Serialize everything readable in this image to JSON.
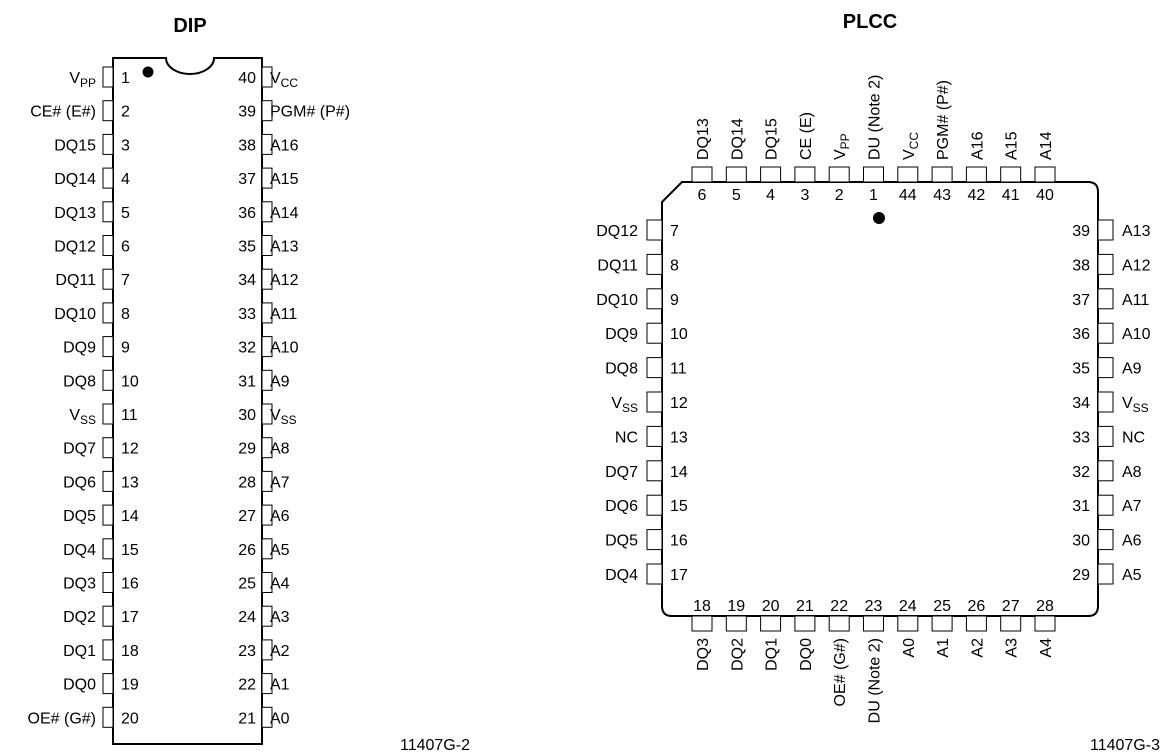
{
  "dip": {
    "title": "DIP",
    "figure_id": "11407G-2",
    "pins": [
      {
        "num": "1",
        "label": "VPP",
        "base": "V",
        "sub": "PP"
      },
      {
        "num": "2",
        "label": "CE# (E#)"
      },
      {
        "num": "3",
        "label": "DQ15"
      },
      {
        "num": "4",
        "label": "DQ14"
      },
      {
        "num": "5",
        "label": "DQ13"
      },
      {
        "num": "6",
        "label": "DQ12"
      },
      {
        "num": "7",
        "label": "DQ11"
      },
      {
        "num": "8",
        "label": "DQ10"
      },
      {
        "num": "9",
        "label": "DQ9"
      },
      {
        "num": "10",
        "label": "DQ8"
      },
      {
        "num": "11",
        "label": "VSS",
        "base": "V",
        "sub": "SS"
      },
      {
        "num": "12",
        "label": "DQ7"
      },
      {
        "num": "13",
        "label": "DQ6"
      },
      {
        "num": "14",
        "label": "DQ5"
      },
      {
        "num": "15",
        "label": "DQ4"
      },
      {
        "num": "16",
        "label": "DQ3"
      },
      {
        "num": "17",
        "label": "DQ2"
      },
      {
        "num": "18",
        "label": "DQ1"
      },
      {
        "num": "19",
        "label": "DQ0"
      },
      {
        "num": "20",
        "label": "OE# (G#)"
      },
      {
        "num": "21",
        "label": "A0"
      },
      {
        "num": "22",
        "label": "A1"
      },
      {
        "num": "23",
        "label": "A2"
      },
      {
        "num": "24",
        "label": "A3"
      },
      {
        "num": "25",
        "label": "A4"
      },
      {
        "num": "26",
        "label": "A5"
      },
      {
        "num": "27",
        "label": "A6"
      },
      {
        "num": "28",
        "label": "A7"
      },
      {
        "num": "29",
        "label": "A8"
      },
      {
        "num": "30",
        "label": "VSS",
        "base": "V",
        "sub": "SS"
      },
      {
        "num": "31",
        "label": "A9"
      },
      {
        "num": "32",
        "label": "A10"
      },
      {
        "num": "33",
        "label": "A11"
      },
      {
        "num": "34",
        "label": "A12"
      },
      {
        "num": "35",
        "label": "A13"
      },
      {
        "num": "36",
        "label": "A14"
      },
      {
        "num": "37",
        "label": "A15"
      },
      {
        "num": "38",
        "label": "A16"
      },
      {
        "num": "39",
        "label": "PGM# (P#)"
      },
      {
        "num": "40",
        "label": "VCC",
        "base": "V",
        "sub": "CC"
      }
    ]
  },
  "plcc": {
    "title": "PLCC",
    "figure_id": "11407G-3",
    "top_pins": [
      {
        "num": "6",
        "label": "DQ13"
      },
      {
        "num": "5",
        "label": "DQ14"
      },
      {
        "num": "4",
        "label": "DQ15"
      },
      {
        "num": "3",
        "label": "CE (E)"
      },
      {
        "num": "2",
        "label": "VPP",
        "base": "V",
        "sub": "PP"
      },
      {
        "num": "1",
        "label": "DU (Note 2)"
      },
      {
        "num": "44",
        "label": "VCC",
        "base": "V",
        "sub": "CC"
      },
      {
        "num": "43",
        "label": "PGM# (P#)"
      },
      {
        "num": "42",
        "label": "A16"
      },
      {
        "num": "41",
        "label": "A15"
      },
      {
        "num": "40",
        "label": "A14"
      }
    ],
    "left_pins": [
      {
        "num": "7",
        "label": "DQ12"
      },
      {
        "num": "8",
        "label": "DQ11"
      },
      {
        "num": "9",
        "label": "DQ10"
      },
      {
        "num": "10",
        "label": "DQ9"
      },
      {
        "num": "11",
        "label": "DQ8"
      },
      {
        "num": "12",
        "label": "VSS",
        "base": "V",
        "sub": "SS"
      },
      {
        "num": "13",
        "label": "NC"
      },
      {
        "num": "14",
        "label": "DQ7"
      },
      {
        "num": "15",
        "label": "DQ6"
      },
      {
        "num": "16",
        "label": "DQ5"
      },
      {
        "num": "17",
        "label": "DQ4"
      }
    ],
    "right_pins": [
      {
        "num": "39",
        "label": "A13"
      },
      {
        "num": "38",
        "label": "A12"
      },
      {
        "num": "37",
        "label": "A11"
      },
      {
        "num": "36",
        "label": "A10"
      },
      {
        "num": "35",
        "label": "A9"
      },
      {
        "num": "34",
        "label": "VSS",
        "base": "V",
        "sub": "SS"
      },
      {
        "num": "33",
        "label": "NC"
      },
      {
        "num": "32",
        "label": "A8"
      },
      {
        "num": "31",
        "label": "A7"
      },
      {
        "num": "30",
        "label": "A6"
      },
      {
        "num": "29",
        "label": "A5"
      }
    ],
    "bottom_pins": [
      {
        "num": "18",
        "label": "DQ3"
      },
      {
        "num": "19",
        "label": "DQ2"
      },
      {
        "num": "20",
        "label": "DQ1"
      },
      {
        "num": "21",
        "label": "DQ0"
      },
      {
        "num": "22",
        "label": "OE# (G#)"
      },
      {
        "num": "23",
        "label": "DU (Note 2)"
      },
      {
        "num": "24",
        "label": "A0"
      },
      {
        "num": "25",
        "label": "A1"
      },
      {
        "num": "26",
        "label": "A2"
      },
      {
        "num": "27",
        "label": "A3"
      },
      {
        "num": "28",
        "label": "A4"
      }
    ]
  }
}
